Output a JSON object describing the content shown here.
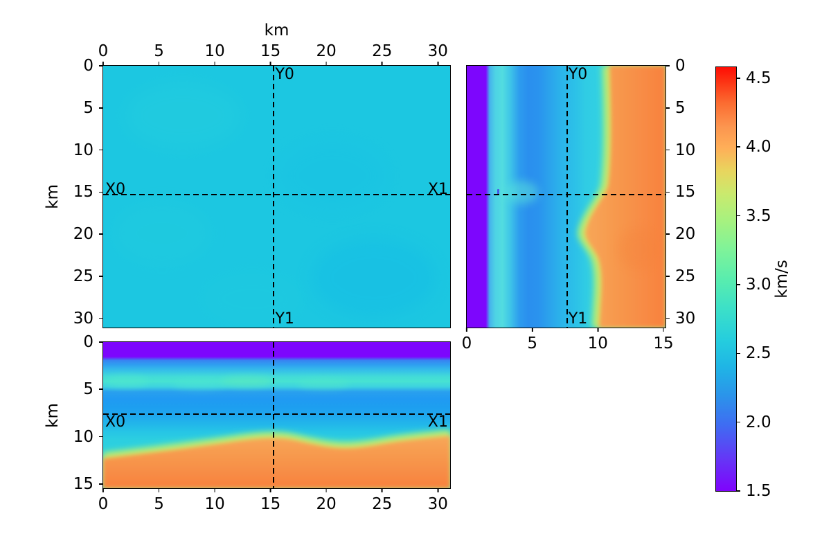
{
  "figure": {
    "background": "#ffffff",
    "title": "",
    "axis_unit_label": "km",
    "colorbar_unit_label": "km/s"
  },
  "chart_data": {
    "type": "heatmap",
    "layout": "three orthogonal slices (plan view, depth-vs-y section, x-vs-depth section) of a 3D velocity volume with a shared vertical colorbar on the right",
    "colormap": "rainbow",
    "grid": false,
    "colorbar": {
      "label": "km/s",
      "vmin": 1.5,
      "vmax": 4.58,
      "range": [
        1.5,
        4.58
      ],
      "ticks": [
        "1.5",
        "2.0",
        "2.5",
        "3.0",
        "3.5",
        "4.0",
        "4.5"
      ],
      "anchor_colors": {
        "1.5": "#8004fb",
        "2.0": "#3f6af4",
        "2.5": "#20c2e2",
        "3.0": "#40eeb8",
        "3.5": "#aef289",
        "4.0": "#ffa85e",
        "4.5": "#fd3b1c"
      }
    },
    "panels": [
      {
        "id": "plan-view",
        "description": "horizontal slice (map view) at 7.65 km depth, nearly uniform ~2.5 km/s cyan",
        "xlabel": "km",
        "ylabel": "km",
        "x": {
          "range": [
            0,
            31.1
          ],
          "ticks": [
            0,
            5,
            10,
            15,
            20,
            25,
            30
          ],
          "side": "top"
        },
        "y": {
          "range": [
            0,
            31.1
          ],
          "ticks": [
            0,
            5,
            10,
            15,
            20,
            25,
            30
          ],
          "side": "left"
        },
        "mean_velocity_km_s": 2.5
      },
      {
        "id": "depth-y-section",
        "description": "vertical slice at X = 15.3 km; depth on horizontal axis, y on right axis; layered: purple 0-1.6 km, blue/cyan 2-9 km, green transition ~10 km, orange ~4.1 km/s below 11 km with shallow notch near y = 19-21 km",
        "x": {
          "range": [
            0,
            15.16
          ],
          "ticks": [
            0,
            5,
            10,
            15
          ],
          "side": "bottom"
        },
        "y": {
          "range": [
            0,
            31.1
          ],
          "ticks": [
            0,
            5,
            10,
            15,
            20,
            25,
            30
          ],
          "side": "right"
        }
      },
      {
        "id": "x-depth-section",
        "description": "vertical slice at Y = 15.3 km; x horizontal, depth vertical; layered model with orange basement dome rising to ~10 km depth near x = 12-16 km and deepening to ~12 km at x = 0",
        "ylabel": "km",
        "x": {
          "range": [
            0,
            31.1
          ],
          "ticks": [
            0,
            5,
            10,
            15,
            20,
            25,
            30
          ],
          "side": "bottom"
        },
        "y": {
          "range": [
            0,
            15.45
          ],
          "ticks": [
            0,
            5,
            10,
            15
          ],
          "side": "left"
        }
      }
    ],
    "crosshair": {
      "x_km": 15.3,
      "y_km": 15.3,
      "depth_km": 7.65,
      "labels": {
        "y0": "Y0",
        "y1": "Y1",
        "x0": "X0",
        "x1": "X1"
      }
    },
    "depth_profile": {
      "comment": "approximate 1D velocity profile read from the sections via the colorbar",
      "depth_km": [
        0,
        1.5,
        1.7,
        2.5,
        3.5,
        4.5,
        5.5,
        6.5,
        7.65,
        8.5,
        9.5,
        10.2,
        10.8,
        11.5,
        13,
        15.3
      ],
      "velocity_km_s": [
        1.5,
        1.5,
        2.15,
        2.25,
        2.5,
        2.9,
        2.2,
        2.2,
        2.35,
        2.5,
        2.6,
        3.0,
        3.5,
        4.0,
        4.1,
        4.1
      ]
    }
  }
}
